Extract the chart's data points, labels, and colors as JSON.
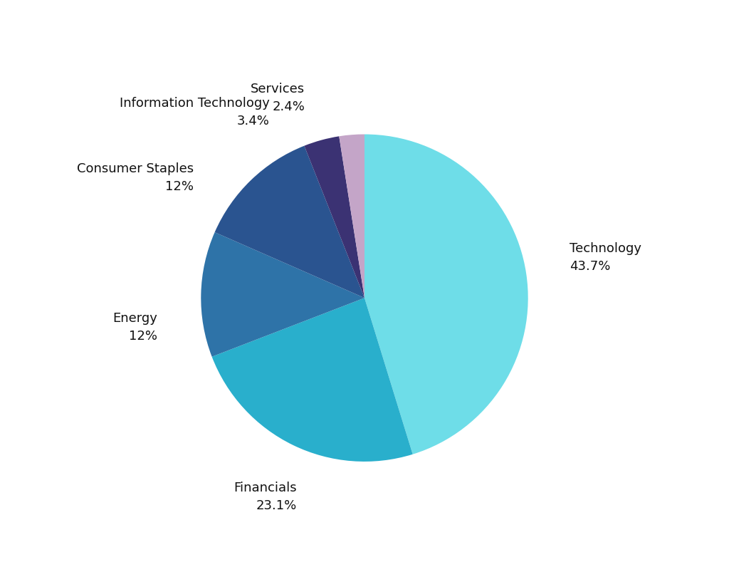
{
  "slices": [
    {
      "label": "Technology",
      "pct": 43.7,
      "color": "#6EDDE8"
    },
    {
      "label": "Financials",
      "pct": 23.1,
      "color": "#29AFCC"
    },
    {
      "label": "Energy",
      "pct": 12.0,
      "color": "#2E73A8"
    },
    {
      "label": "Consumer Staples",
      "pct": 12.0,
      "color": "#2A5490"
    },
    {
      "label": "Information Technology",
      "pct": 3.4,
      "color": "#3B3273"
    },
    {
      "label": "Services",
      "pct": 2.4,
      "color": "#C4A5C8"
    }
  ],
  "label_fontsize": 13,
  "background_color": "#ffffff",
  "text_color": "#111111",
  "startangle": 90
}
